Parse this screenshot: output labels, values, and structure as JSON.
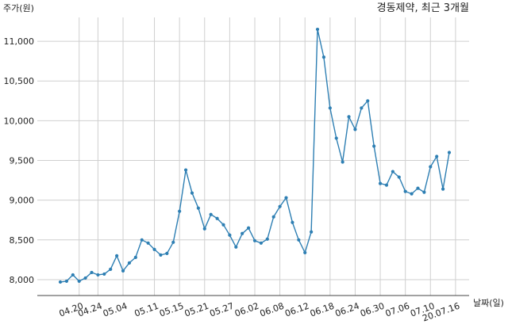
{
  "chart_data": {
    "type": "line",
    "title": "경동제약, 최근 3개월",
    "ylabel": "주가(원)",
    "xlabel": "날짜(일)",
    "color": "#2e7fb3",
    "grid": true,
    "ylim": [
      7800,
      11300
    ],
    "yticks": [
      "8,000",
      "8,500",
      "9,000",
      "9,500",
      "10,000",
      "10,500",
      "11,000"
    ],
    "ytick_values": [
      8000,
      8500,
      9000,
      9500,
      10000,
      10500,
      11000
    ],
    "xticks": [
      "04.20",
      "04.24",
      "05.04",
      "05.11",
      "05.15",
      "05.21",
      "05.27",
      "06.02",
      "06.08",
      "06.12",
      "06.18",
      "06.24",
      "06.30",
      "07.06",
      "07.10",
      "20.07.16"
    ],
    "xtick_index": [
      3,
      6,
      10,
      15,
      19,
      23,
      27,
      31,
      35,
      39,
      43,
      47,
      51,
      55,
      59,
      63
    ],
    "values": [
      7970,
      7980,
      8060,
      7980,
      8020,
      8090,
      8060,
      8070,
      8130,
      8300,
      8110,
      8210,
      8280,
      8500,
      8460,
      8380,
      8310,
      8330,
      8470,
      8860,
      9380,
      9090,
      8900,
      8640,
      8820,
      8770,
      8690,
      8560,
      8410,
      8580,
      8650,
      8490,
      8460,
      8510,
      8790,
      8920,
      9030,
      8720,
      8500,
      8340,
      8600,
      11150,
      10800,
      10160,
      9780,
      9480,
      10050,
      9890,
      10160,
      10250,
      9680,
      9210,
      9190,
      9360,
      9290,
      9110,
      9080,
      9150,
      9100,
      9420,
      9550,
      9140,
      9600
    ]
  }
}
